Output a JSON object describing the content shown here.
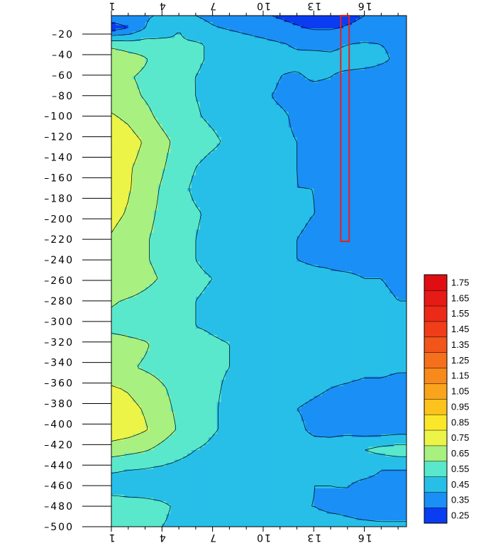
{
  "chart_data": {
    "type": "heatmap",
    "title": "",
    "xlabel": "",
    "ylabel": "",
    "x_ticks": [
      "1",
      "4",
      "7",
      "10",
      "13",
      "16"
    ],
    "y_ticks": [
      "-20",
      "-40",
      "-60",
      "-80",
      "-100",
      "-120",
      "-140",
      "-160",
      "-180",
      "-200",
      "-220",
      "-240",
      "-260",
      "-280",
      "-300",
      "-320",
      "-340",
      "-360",
      "-380",
      "-400",
      "-420",
      "-440",
      "-460",
      "-480",
      "-500"
    ],
    "xlim": [
      1,
      18.5
    ],
    "ylim": [
      -500,
      -2
    ],
    "x_axis_positions": [
      "top",
      "bottom"
    ],
    "grid": false,
    "colorbar": {
      "placement": "right",
      "levels": [
        "0.25",
        "0.35",
        "0.45",
        "0.55",
        "0.65",
        "0.75",
        "0.85",
        "0.95",
        "1.05",
        "1.15",
        "1.25",
        "1.35",
        "1.45",
        "1.55",
        "1.65",
        "1.75"
      ],
      "colors": [
        "#0a3cf2",
        "#1a8ff5",
        "#27bfe8",
        "#5ae8cc",
        "#a8f080",
        "#ecf448",
        "#fbe72a",
        "#fcc31c",
        "#f9a41c",
        "#f78a1a",
        "#f5701a",
        "#f25519",
        "#ef3e19",
        "#ec2a18",
        "#e61a16",
        "#e00e12"
      ]
    },
    "highlight_box": {
      "x_range": [
        14.6,
        15.1
      ],
      "y_range": [
        -222,
        -2
      ],
      "color": "#e8201a"
    },
    "depth_profile": [
      {
        "y": -2,
        "values": [
          0.42,
          0.4,
          0.44,
          0.46,
          0.48,
          0.45,
          0.42,
          0.4,
          0.38,
          0.36,
          0.34,
          0.32,
          0.3,
          0.3,
          0.32,
          0.35,
          0.36,
          0.36
        ]
      },
      {
        "y": -14,
        "values": [
          0.3,
          0.35,
          0.45,
          0.5,
          0.55,
          0.5,
          0.46,
          0.44,
          0.42,
          0.4,
          0.38,
          0.36,
          0.34,
          0.34,
          0.36,
          0.38,
          0.4,
          0.4
        ]
      },
      {
        "y": -30,
        "values": [
          0.62,
          0.6,
          0.6,
          0.58,
          0.56,
          0.56,
          0.54,
          0.52,
          0.5,
          0.48,
          0.46,
          0.44,
          0.43,
          0.43,
          0.45,
          0.46,
          0.45,
          0.44
        ]
      },
      {
        "y": -45,
        "values": [
          0.74,
          0.7,
          0.66,
          0.6,
          0.58,
          0.56,
          0.54,
          0.52,
          0.5,
          0.48,
          0.46,
          0.47,
          0.48,
          0.47,
          0.48,
          0.48,
          0.46,
          0.44
        ]
      },
      {
        "y": -62,
        "values": [
          0.68,
          0.66,
          0.63,
          0.58,
          0.56,
          0.55,
          0.53,
          0.52,
          0.5,
          0.48,
          0.45,
          0.44,
          0.46,
          0.45,
          0.43,
          0.42,
          0.42,
          0.42
        ]
      },
      {
        "y": -80,
        "values": [
          0.7,
          0.68,
          0.64,
          0.6,
          0.57,
          0.55,
          0.52,
          0.5,
          0.48,
          0.46,
          0.44,
          0.43,
          0.42,
          0.42,
          0.42,
          0.42,
          0.41,
          0.4
        ]
      },
      {
        "y": -100,
        "values": [
          0.76,
          0.73,
          0.68,
          0.62,
          0.58,
          0.56,
          0.53,
          0.5,
          0.48,
          0.47,
          0.46,
          0.44,
          0.43,
          0.43,
          0.42,
          0.42,
          0.41,
          0.4
        ]
      },
      {
        "y": -125,
        "values": [
          0.82,
          0.79,
          0.74,
          0.68,
          0.62,
          0.6,
          0.57,
          0.53,
          0.5,
          0.48,
          0.46,
          0.45,
          0.44,
          0.44,
          0.43,
          0.42,
          0.42,
          0.41
        ]
      },
      {
        "y": -150,
        "values": [
          0.8,
          0.76,
          0.72,
          0.66,
          0.6,
          0.55,
          0.51,
          0.49,
          0.48,
          0.47,
          0.46,
          0.45,
          0.44,
          0.43,
          0.43,
          0.43,
          0.42,
          0.41
        ]
      },
      {
        "y": -170,
        "values": [
          0.8,
          0.76,
          0.7,
          0.64,
          0.58,
          0.53,
          0.5,
          0.49,
          0.48,
          0.47,
          0.46,
          0.45,
          0.45,
          0.44,
          0.43,
          0.43,
          0.42,
          0.42
        ]
      },
      {
        "y": -195,
        "values": [
          0.78,
          0.74,
          0.68,
          0.63,
          0.58,
          0.56,
          0.53,
          0.5,
          0.49,
          0.48,
          0.47,
          0.46,
          0.45,
          0.45,
          0.44,
          0.44,
          0.43,
          0.43
        ]
      },
      {
        "y": -220,
        "values": [
          0.74,
          0.7,
          0.66,
          0.62,
          0.58,
          0.55,
          0.52,
          0.5,
          0.48,
          0.47,
          0.46,
          0.45,
          0.44,
          0.44,
          0.44,
          0.43,
          0.43,
          0.43
        ]
      },
      {
        "y": -240,
        "values": [
          0.72,
          0.7,
          0.66,
          0.62,
          0.58,
          0.55,
          0.52,
          0.5,
          0.48,
          0.47,
          0.46,
          0.45,
          0.44,
          0.44,
          0.43,
          0.43,
          0.43,
          0.42
        ]
      },
      {
        "y": -258,
        "values": [
          0.74,
          0.72,
          0.68,
          0.64,
          0.6,
          0.57,
          0.55,
          0.53,
          0.51,
          0.5,
          0.49,
          0.48,
          0.47,
          0.46,
          0.46,
          0.45,
          0.45,
          0.44
        ]
      },
      {
        "y": -280,
        "values": [
          0.66,
          0.64,
          0.62,
          0.6,
          0.57,
          0.55,
          0.53,
          0.52,
          0.51,
          0.5,
          0.49,
          0.48,
          0.47,
          0.47,
          0.46,
          0.46,
          0.46,
          0.45
        ]
      },
      {
        "y": -305,
        "values": [
          0.62,
          0.61,
          0.6,
          0.58,
          0.56,
          0.55,
          0.54,
          0.53,
          0.52,
          0.51,
          0.5,
          0.49,
          0.48,
          0.48,
          0.48,
          0.47,
          0.47,
          0.46
        ]
      },
      {
        "y": -322,
        "values": [
          0.7,
          0.68,
          0.66,
          0.62,
          0.6,
          0.58,
          0.56,
          0.55,
          0.53,
          0.52,
          0.51,
          0.5,
          0.49,
          0.48,
          0.48,
          0.48,
          0.47,
          0.47
        ]
      },
      {
        "y": -345,
        "values": [
          0.68,
          0.66,
          0.64,
          0.62,
          0.6,
          0.58,
          0.56,
          0.55,
          0.54,
          0.53,
          0.51,
          0.5,
          0.49,
          0.48,
          0.48,
          0.47,
          0.47,
          0.46
        ]
      },
      {
        "y": -365,
        "values": [
          0.76,
          0.74,
          0.7,
          0.66,
          0.62,
          0.59,
          0.56,
          0.54,
          0.52,
          0.5,
          0.48,
          0.47,
          0.46,
          0.45,
          0.44,
          0.43,
          0.43,
          0.42
        ]
      },
      {
        "y": -385,
        "values": [
          0.8,
          0.78,
          0.74,
          0.68,
          0.63,
          0.59,
          0.56,
          0.53,
          0.51,
          0.49,
          0.47,
          0.45,
          0.44,
          0.43,
          0.42,
          0.41,
          0.41,
          0.4
        ]
      },
      {
        "y": -405,
        "values": [
          0.82,
          0.8,
          0.76,
          0.7,
          0.64,
          0.6,
          0.56,
          0.53,
          0.51,
          0.49,
          0.47,
          0.46,
          0.44,
          0.43,
          0.42,
          0.4,
          0.39,
          0.4
        ]
      },
      {
        "y": -425,
        "values": [
          0.7,
          0.68,
          0.66,
          0.62,
          0.58,
          0.55,
          0.53,
          0.51,
          0.5,
          0.49,
          0.48,
          0.47,
          0.47,
          0.48,
          0.52,
          0.55,
          0.58,
          0.6
        ]
      },
      {
        "y": -445,
        "values": [
          0.56,
          0.55,
          0.54,
          0.53,
          0.52,
          0.51,
          0.5,
          0.49,
          0.48,
          0.47,
          0.46,
          0.45,
          0.45,
          0.45,
          0.46,
          0.46,
          0.45,
          0.45
        ]
      },
      {
        "y": -462,
        "values": [
          0.5,
          0.5,
          0.51,
          0.52,
          0.52,
          0.51,
          0.5,
          0.49,
          0.48,
          0.47,
          0.46,
          0.46,
          0.45,
          0.45,
          0.45,
          0.44,
          0.44,
          0.44
        ]
      },
      {
        "y": -480,
        "values": [
          0.62,
          0.6,
          0.58,
          0.56,
          0.54,
          0.52,
          0.5,
          0.49,
          0.48,
          0.47,
          0.46,
          0.45,
          0.45,
          0.44,
          0.44,
          0.43,
          0.42,
          0.42
        ]
      },
      {
        "y": -500,
        "values": [
          0.58,
          0.57,
          0.56,
          0.55,
          0.54,
          0.53,
          0.52,
          0.51,
          0.5,
          0.49,
          0.48,
          0.48,
          0.47,
          0.47,
          0.46,
          0.46,
          0.46,
          0.46
        ]
      }
    ]
  }
}
